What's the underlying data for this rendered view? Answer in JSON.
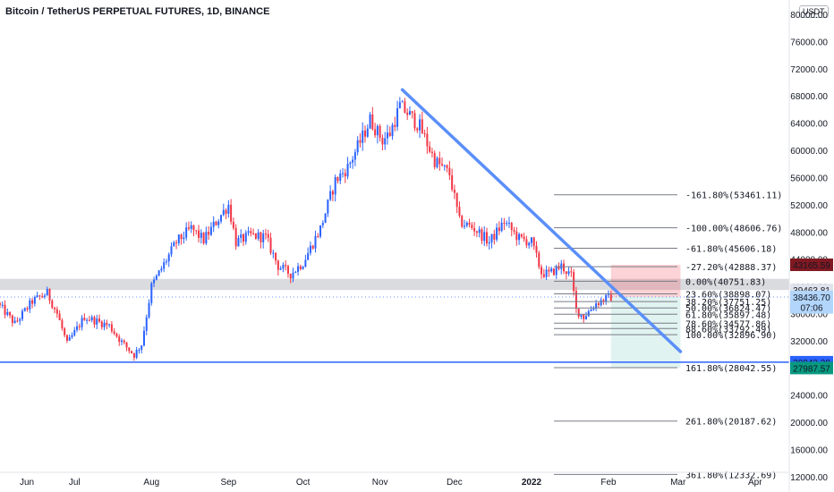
{
  "header": {
    "title": "Bitcoin / TetherUS PERPETUAL FUTURES, 1D, BINANCE",
    "currency": "USDT"
  },
  "chart_data": {
    "type": "candlestick",
    "ylim": [
      10000,
      80000
    ],
    "y_ticks": [
      "80000.00",
      "76000.00",
      "72000.00",
      "68000.00",
      "64000.00",
      "60000.00",
      "56000.00",
      "52000.00",
      "48000.00",
      "44000.00",
      "40000.00",
      "36000.00",
      "32000.00",
      "28000.00",
      "24000.00",
      "20000.00",
      "16000.00",
      "12000.00"
    ],
    "x_ticks": [
      {
        "label": "Jun",
        "day": 0
      },
      {
        "label": "Jul",
        "day": 30
      },
      {
        "label": "Aug",
        "day": 61
      },
      {
        "label": "Sep",
        "day": 92
      },
      {
        "label": "Oct",
        "day": 122
      },
      {
        "label": "Nov",
        "day": 153
      },
      {
        "label": "Dec",
        "day": 183
      },
      {
        "label": "2022",
        "day": 214
      },
      {
        "label": "Feb",
        "day": 245
      },
      {
        "label": "Mar",
        "day": 273
      },
      {
        "label": "Apr",
        "day": 304
      }
    ],
    "fib_levels": [
      {
        "label": "-161.80%(53461.11)",
        "value": 53461.11
      },
      {
        "label": "-100.00%(48606.76)",
        "value": 48606.76
      },
      {
        "label": "-61.80%(45606.18)",
        "value": 45606.18
      },
      {
        "label": "-27.20%(42888.37)",
        "value": 42888.37
      },
      {
        "label": "0.00%(40751.83)",
        "value": 40751.83
      },
      {
        "label": "23.60%(38898.07)",
        "value": 38898.07
      },
      {
        "label": "38.20%(37751.25)",
        "value": 37751.25
      },
      {
        "label": "50.00%(36824.47)",
        "value": 36824.47
      },
      {
        "label": "61.80%(35897.48)",
        "value": 35897.48
      },
      {
        "label": "78.60%(34577.86)",
        "value": 34577.86
      },
      {
        "label": "88.60%(33792.49)",
        "value": 33792.49
      },
      {
        "label": "100.00%(32896.90)",
        "value": 32896.9
      },
      {
        "label": "161.80%(28042.55)",
        "value": 28042.55
      },
      {
        "label": "261.80%(20187.62)",
        "value": 20187.62
      },
      {
        "label": "361.80%(12332.69)",
        "value": 12332.69
      }
    ],
    "trendline": {
      "start": {
        "day": 162,
        "price": 68900
      },
      "end": {
        "day": 274,
        "price": 30400
      }
    },
    "support_level": 28842.2,
    "resistance_zone": [
      39463.81,
      41100
    ],
    "price_labels": [
      {
        "text": "43165.59",
        "value": 43165.59,
        "color": "#801922"
      },
      {
        "text": "39463.81",
        "value": 39463.81,
        "color": "#e0e3eb"
      },
      {
        "text": "38436.70",
        "value": 38436.7,
        "color": "#b2d5fb"
      },
      {
        "text": "07:06",
        "value": 36900,
        "color": "#b2d5fb"
      },
      {
        "text": "28842.20",
        "value": 28842.2,
        "color": "#2962ff"
      },
      {
        "text": "27987.57",
        "value": 27987.57,
        "color": "#089981"
      }
    ],
    "position": {
      "entry_day": 246,
      "end_day": 274,
      "entry": 38436.7,
      "stop": 43165.59,
      "target": 27987.57
    },
    "current_price": 38436.7,
    "anchors": [
      {
        "day": 0,
        "price": 37500
      },
      {
        "day": 7,
        "price": 34500
      },
      {
        "day": 14,
        "price": 37800
      },
      {
        "day": 20,
        "price": 39000
      },
      {
        "day": 24,
        "price": 36000
      },
      {
        "day": 28,
        "price": 31500
      },
      {
        "day": 35,
        "price": 35500
      },
      {
        "day": 45,
        "price": 34200
      },
      {
        "day": 50,
        "price": 31800
      },
      {
        "day": 55,
        "price": 29900
      },
      {
        "day": 58,
        "price": 31500
      },
      {
        "day": 62,
        "price": 40000
      },
      {
        "day": 72,
        "price": 46500
      },
      {
        "day": 78,
        "price": 48500
      },
      {
        "day": 83,
        "price": 46800
      },
      {
        "day": 89,
        "price": 50000
      },
      {
        "day": 93,
        "price": 52000
      },
      {
        "day": 96,
        "price": 46500
      },
      {
        "day": 102,
        "price": 47500
      },
      {
        "day": 108,
        "price": 47200
      },
      {
        "day": 113,
        "price": 43000
      },
      {
        "day": 118,
        "price": 41800
      },
      {
        "day": 123,
        "price": 43500
      },
      {
        "day": 130,
        "price": 48500
      },
      {
        "day": 136,
        "price": 55500
      },
      {
        "day": 141,
        "price": 57500
      },
      {
        "day": 147,
        "price": 62000
      },
      {
        "day": 150,
        "price": 64500
      },
      {
        "day": 155,
        "price": 61500
      },
      {
        "day": 158,
        "price": 62500
      },
      {
        "day": 162,
        "price": 66500
      },
      {
        "day": 165,
        "price": 65500
      },
      {
        "day": 170,
        "price": 63500
      },
      {
        "day": 176,
        "price": 58500
      },
      {
        "day": 182,
        "price": 56500
      },
      {
        "day": 186,
        "price": 49500
      },
      {
        "day": 192,
        "price": 48500
      },
      {
        "day": 198,
        "price": 46500
      },
      {
        "day": 204,
        "price": 49500
      },
      {
        "day": 210,
        "price": 47000
      },
      {
        "day": 215,
        "price": 46500
      },
      {
        "day": 219,
        "price": 42000
      },
      {
        "day": 222,
        "price": 41800
      },
      {
        "day": 227,
        "price": 43000
      },
      {
        "day": 231,
        "price": 41500
      },
      {
        "day": 233,
        "price": 36500
      },
      {
        "day": 236,
        "price": 35500
      },
      {
        "day": 241,
        "price": 37500
      },
      {
        "day": 246,
        "price": 38400
      }
    ]
  }
}
